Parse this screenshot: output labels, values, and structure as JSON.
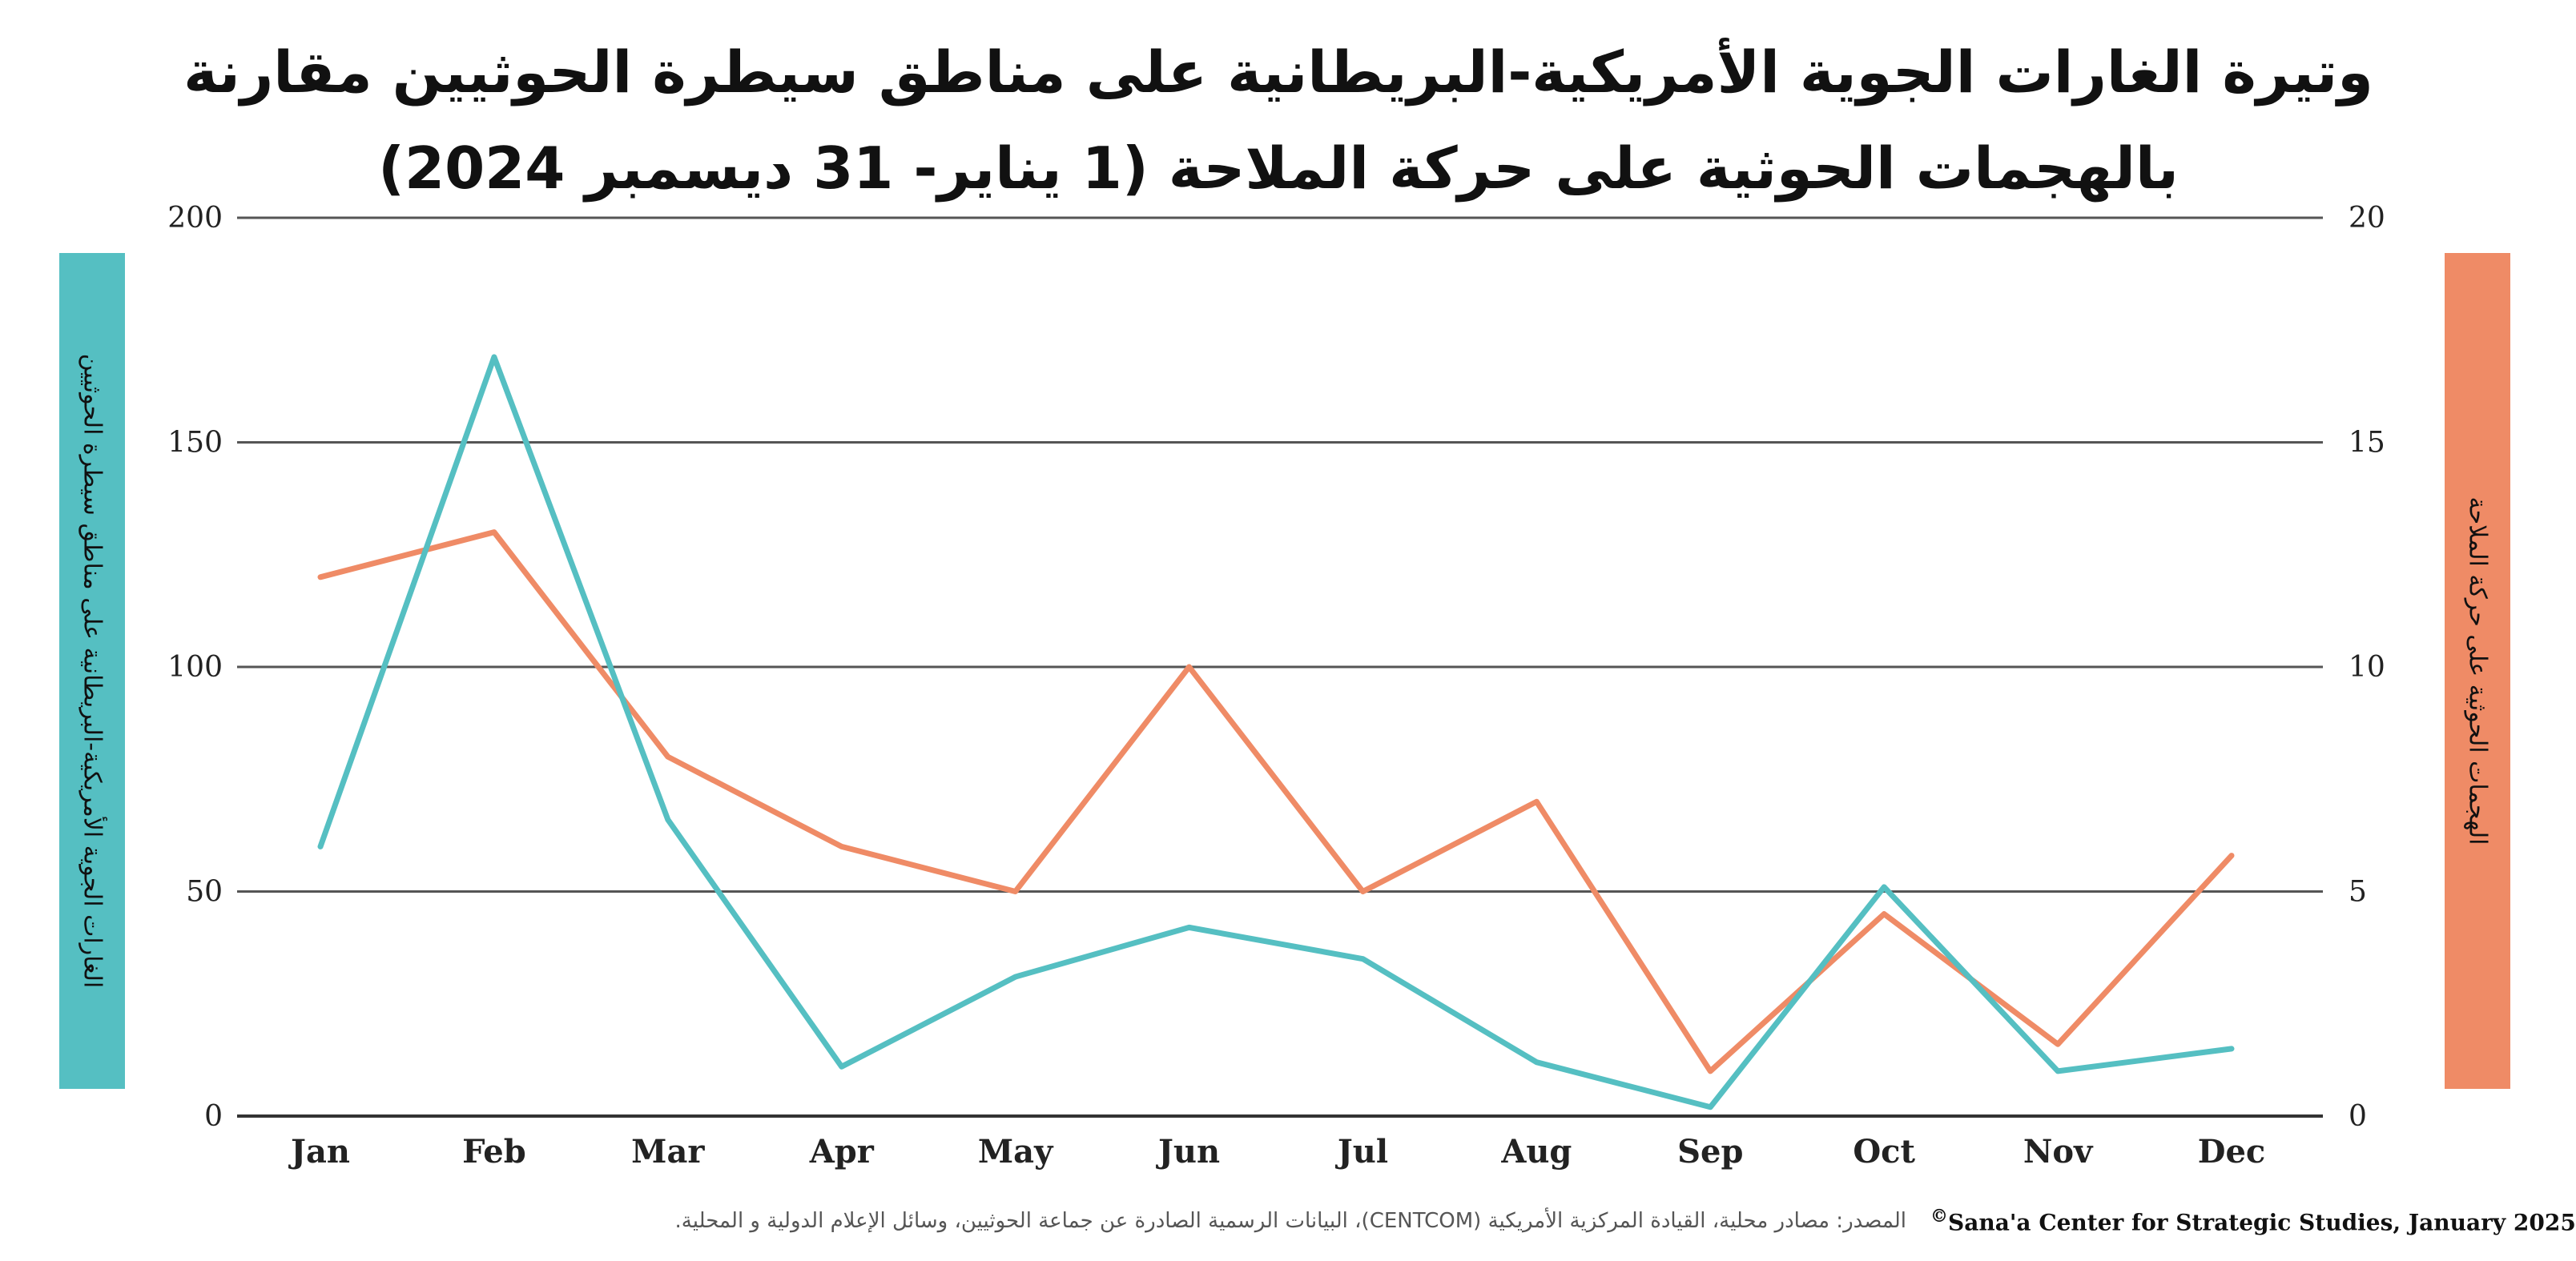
{
  "chart_data": {
    "type": "line",
    "title": [
      "وتيرة الغارات الجوية الأمريكية-البريطانية على  مناطق سيطرة الحوثيين مقارنة",
      "بالهجمات الحوثية على حركة الملاحة   (1 يناير- 31 ديسمبر 2024)"
    ],
    "categories": [
      "Jan",
      "Feb",
      "Mar",
      "Apr",
      "May",
      "Jun",
      "Jul",
      "Aug",
      "Sep",
      "Oct",
      "Nov",
      "Dec"
    ],
    "series": [
      {
        "axis": "left",
        "color": "#55bfc2",
        "values": [
          60,
          169,
          66,
          11,
          31,
          42,
          35,
          12,
          2,
          51,
          10,
          15
        ]
      },
      {
        "axis": "right",
        "color": "#ef8b66",
        "values": [
          12.0,
          13.0,
          8.0,
          6.0,
          5.0,
          10.0,
          5.0,
          7.0,
          1.0,
          4.5,
          1.6,
          5.8
        ]
      }
    ],
    "ylabel_left": "الغارات الجوية الأمريكية-البريطانية على  مناطق سيطرة الحوثيين",
    "ylabel_right": "الهجمات الحوثية على حركة الملاحة",
    "ylim_left": [
      0,
      200
    ],
    "ylim_right": [
      0,
      20
    ],
    "yticks_left": [
      0,
      50,
      100,
      150,
      200
    ],
    "yticks_right": [
      0,
      5,
      10,
      15,
      20
    ],
    "grid": true,
    "colors": {
      "left_band": "#55bfc2",
      "right_band": "#ef8b66",
      "grid": "#555555"
    }
  },
  "source": "المصدر:  مصادر محلية، القيادة المركزية الأمريكية (CENTCOM)، البيانات الرسمية الصادرة عن جماعة الحوثيين، وسائل الإعلام الدولية و المحلية.",
  "credit": {
    "symbol": "©",
    "text": "Sana'a Center for Strategic Studies, January 2025"
  }
}
